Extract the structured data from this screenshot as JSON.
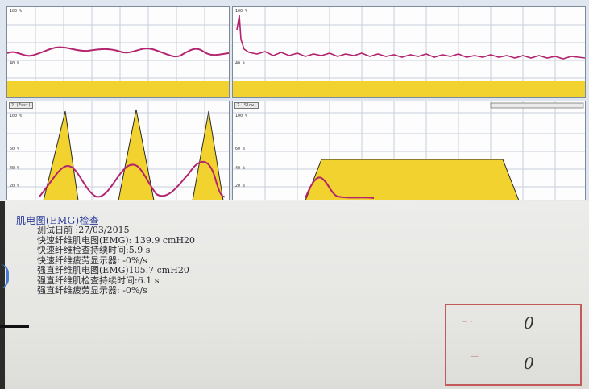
{
  "screen": {
    "left_top": {
      "scale_top": "100 %",
      "scale_bottom": "40 %"
    },
    "right_top": {
      "scale_top": "100 %",
      "scale_bottom": "40 %"
    },
    "left_bottom": {
      "tab": "2 (Fast)",
      "scale_top": "100 %",
      "scale_mid": "60 %",
      "scale_low": "40 %",
      "scale_bottom": "20 %"
    },
    "right_bottom": {
      "tab": "2 (Slow)",
      "scale_top": "100 %",
      "scale_mid": "60 %",
      "scale_low": "40 %",
      "scale_bottom": "20 %"
    },
    "colors": {
      "curve": "#b3246e",
      "fill": "#f2d22e",
      "grid": "#9aa7b5"
    }
  },
  "report": {
    "title": "肌电图(EMG)检查",
    "lines": [
      "测试日前 :27/03/2015",
      "快速纤维肌电图(EMG): 139.9 cmH20",
      "快速纤维检查持续时间:5.9 s",
      "快速纤维疲劳显示器: -0%/s",
      "强直纤维肌电图(EMG)105.7 cmH20",
      "强直纤维肌检查持续时间:6.1 s",
      "强直纤维疲劳显示器: -0%/s"
    ]
  },
  "stamp": {
    "values": [
      "0",
      "0"
    ]
  }
}
